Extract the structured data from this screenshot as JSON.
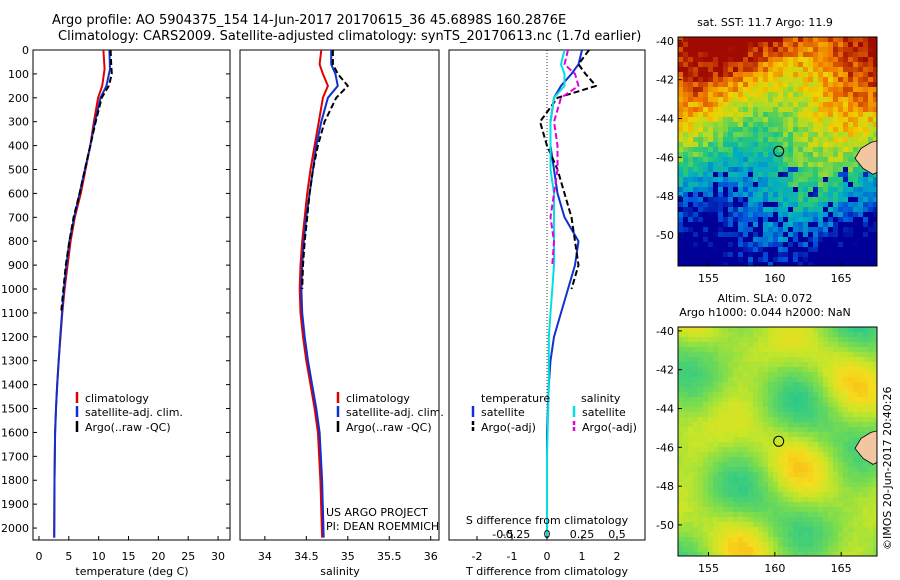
{
  "title": {
    "line1": "Argo profile: AO 5904375_154 14-Jun-2017 20170615_36 45.6898S 160.2876E",
    "line2": "Climatology: CARS2009. Satellite-adjusted climatology: synTS_20170613.nc (1.7d earlier)"
  },
  "colors": {
    "climatology": "#e00000",
    "satellite": "#1030d0",
    "argo": "#000000",
    "sal_satellite": "#00e0e0",
    "sal_argo": "#e000e0"
  },
  "chart_data": [
    {
      "type": "line",
      "name": "temperature-panel",
      "xlabel": "temperature (deg C)",
      "ylabel": "",
      "xlim": [
        -1,
        32
      ],
      "ylim": [
        2050,
        0
      ],
      "xticks": [
        0,
        5,
        10,
        15,
        20,
        25,
        30
      ],
      "yticks": [
        0,
        100,
        200,
        300,
        400,
        500,
        600,
        700,
        800,
        900,
        1000,
        1100,
        1200,
        1300,
        1400,
        1500,
        1600,
        1700,
        1800,
        1900,
        2000
      ],
      "legend": [
        "climatology",
        "satellite-adj. clim.",
        "Argo(..raw -QC)"
      ],
      "series": [
        {
          "key": "climatology",
          "style": "solid",
          "x": [
            10.8,
            11.0,
            10.6,
            9.9,
            9.2,
            8.6,
            7.8,
            7.0,
            6.0,
            5.3,
            4.8,
            4.3,
            3.9,
            3.6,
            3.3,
            3.05,
            2.85,
            2.7,
            2.6,
            2.55
          ],
          "y": [
            0,
            80,
            150,
            200,
            300,
            400,
            500,
            600,
            700,
            800,
            900,
            1000,
            1100,
            1200,
            1300,
            1400,
            1500,
            1600,
            1800,
            2040
          ]
        },
        {
          "key": "satellite",
          "style": "solid",
          "x": [
            11.8,
            11.9,
            11.3,
            10.3,
            9.4,
            8.6,
            7.7,
            6.8,
            5.9,
            5.1,
            4.6,
            4.2,
            3.85,
            3.55,
            3.3,
            3.05,
            2.85,
            2.7,
            2.6,
            2.55
          ],
          "y": [
            0,
            80,
            150,
            200,
            300,
            400,
            500,
            600,
            700,
            800,
            900,
            1000,
            1100,
            1200,
            1300,
            1400,
            1500,
            1600,
            1800,
            2040
          ]
        },
        {
          "key": "argo",
          "style": "dashed",
          "x": [
            12.0,
            12.1,
            12.2,
            11.7,
            10.5,
            9.5,
            8.6,
            7.7,
            6.8,
            5.8,
            5.1,
            4.5,
            4.1,
            3.7
          ],
          "y": [
            0,
            60,
            100,
            150,
            200,
            300,
            400,
            500,
            600,
            700,
            800,
            900,
            1000,
            1100
          ]
        }
      ]
    },
    {
      "type": "line",
      "name": "salinity-panel",
      "xlabel": "salinity",
      "ylabel": "",
      "xlim": [
        33.7,
        36.1
      ],
      "ylim": [
        2050,
        0
      ],
      "xticks": [
        34,
        34.5,
        35,
        35.5,
        36
      ],
      "xtick_labels": [
        "34",
        "34.5",
        "35",
        "35.5",
        "36"
      ],
      "legend": [
        "climatology",
        "satellite-adj. clim.",
        "Argo(..raw -QC)"
      ],
      "annotation": [
        "US ARGO PROJECT",
        "PI: DEAN ROEMMICH"
      ],
      "series": [
        {
          "key": "climatology",
          "style": "solid",
          "x": [
            34.68,
            34.66,
            34.7,
            34.76,
            34.7,
            34.65,
            34.6,
            34.55,
            34.51,
            34.48,
            34.45,
            34.43,
            34.42,
            34.43,
            34.46,
            34.5,
            34.55,
            34.6,
            34.64,
            34.67,
            34.69
          ],
          "y": [
            0,
            60,
            100,
            150,
            200,
            300,
            400,
            500,
            600,
            700,
            800,
            900,
            1000,
            1100,
            1200,
            1300,
            1400,
            1500,
            1600,
            1800,
            2040
          ]
        },
        {
          "key": "satellite",
          "style": "solid",
          "x": [
            34.8,
            34.8,
            34.85,
            34.88,
            34.76,
            34.68,
            34.62,
            34.58,
            34.54,
            34.5,
            34.47,
            34.45,
            34.44,
            34.45,
            34.48,
            34.52,
            34.57,
            34.62,
            34.66,
            34.69,
            34.71
          ],
          "y": [
            0,
            60,
            100,
            150,
            200,
            300,
            400,
            500,
            600,
            700,
            800,
            900,
            1000,
            1100,
            1200,
            1300,
            1400,
            1500,
            1600,
            1800,
            2040
          ]
        },
        {
          "key": "argo",
          "style": "dashed",
          "x": [
            34.82,
            34.82,
            34.88,
            35.0,
            34.86,
            34.72,
            34.64,
            34.58,
            34.54,
            34.51,
            34.48,
            34.46,
            34.45
          ],
          "y": [
            0,
            60,
            100,
            150,
            200,
            300,
            400,
            500,
            600,
            700,
            800,
            900,
            1000
          ]
        }
      ]
    },
    {
      "type": "line",
      "name": "difference-panel",
      "xlabel": "T difference from climatology",
      "xlabel2": "S difference from climatology",
      "xlim": [
        -2.8,
        2.8
      ],
      "ylim": [
        2050,
        0
      ],
      "xticks": [
        -2,
        -1,
        0,
        1,
        2
      ],
      "x2ticks": [
        -2,
        -1,
        0,
        1,
        2
      ],
      "x2tick_labels": [
        "-0.5",
        "-0.25",
        "0",
        "0.25",
        "0.5"
      ],
      "legend_headers": [
        "temperature",
        "salinity"
      ],
      "legend": [
        "satellite",
        "Argo(-adj)",
        "satellite",
        "Argo(-adj)"
      ],
      "series": [
        {
          "key": "satellite",
          "style": "solid",
          "x": [
            1.0,
            0.9,
            0.7,
            0.4,
            0.2,
            0.1,
            0.1,
            0.2,
            0.3,
            0.5,
            0.9,
            0.8,
            0.6,
            0.4,
            0.2,
            0.1,
            0.05,
            0.0,
            0.0
          ],
          "y": [
            0,
            60,
            100,
            150,
            200,
            300,
            400,
            500,
            600,
            700,
            800,
            900,
            1000,
            1100,
            1200,
            1300,
            1400,
            1600,
            2040
          ]
        },
        {
          "key": "argo",
          "style": "dashed",
          "x": [
            1.2,
            0.9,
            1.1,
            1.4,
            0.3,
            -0.2,
            0.0,
            0.3,
            0.5,
            0.7,
            0.8,
            0.9,
            0.7
          ],
          "y": [
            0,
            60,
            100,
            150,
            200,
            300,
            400,
            500,
            600,
            700,
            800,
            900,
            1000
          ]
        },
        {
          "key": "sal_satellite",
          "style": "solid",
          "x": [
            0.5,
            0.4,
            0.5,
            0.5,
            0.2,
            0.1,
            0.1,
            0.1,
            0.2,
            0.2,
            0.2,
            0.2,
            0.15,
            0.1,
            0.05,
            0.05,
            0.0,
            0.0
          ],
          "y": [
            0,
            60,
            100,
            150,
            200,
            300,
            400,
            500,
            600,
            700,
            800,
            900,
            1000,
            1100,
            1200,
            1400,
            1700,
            2040
          ]
        },
        {
          "key": "sal_argo",
          "style": "dashed",
          "x": [
            0.6,
            0.5,
            0.8,
            0.9,
            0.4,
            0.2,
            0.3,
            0.3,
            0.2,
            0.1,
            0.2,
            0.15
          ],
          "y": [
            0,
            60,
            100,
            150,
            200,
            300,
            400,
            500,
            600,
            700,
            800,
            900
          ]
        }
      ]
    },
    {
      "type": "heatmap",
      "name": "sst-map",
      "title": "sat. SST: 11.7  Argo: 11.9",
      "xticks": [
        155,
        160,
        165
      ],
      "yticks": [
        -40,
        -42,
        -44,
        -46,
        -48,
        -50
      ],
      "xlim": [
        152.7,
        167.7
      ],
      "ylim": [
        -51.6,
        -39.8
      ],
      "marker": {
        "lon": 160.29,
        "lat": -45.69
      }
    },
    {
      "type": "heatmap",
      "name": "sla-map",
      "title": [
        "Altim. SLA: 0.072",
        "Argo h1000: 0.044 h2000: NaN"
      ],
      "xticks": [
        155,
        160,
        165
      ],
      "yticks": [
        -40,
        -42,
        -44,
        -46,
        -48,
        -50
      ],
      "xlim": [
        152.7,
        167.7
      ],
      "ylim": [
        -51.6,
        -39.8
      ],
      "marker": {
        "lon": 160.29,
        "lat": -45.69
      }
    }
  ],
  "credit": "©IMOS 20-Jun-2017 20:40:26"
}
